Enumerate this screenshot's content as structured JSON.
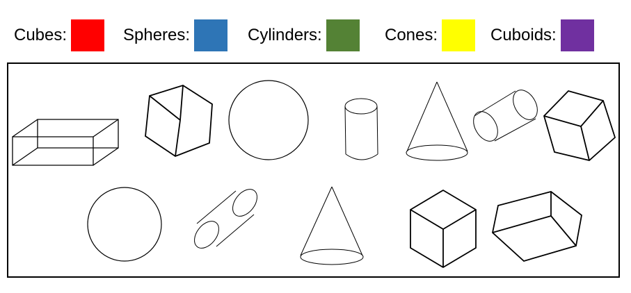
{
  "legend": {
    "items": [
      {
        "label": "Cubes:",
        "color": "#ff0000"
      },
      {
        "label": "Spheres:",
        "color": "#2e75b6"
      },
      {
        "label": "Cylinders:",
        "color": "#548235"
      },
      {
        "label": "Cones:",
        "color": "#ffff00"
      },
      {
        "label": "Cuboids:",
        "color": "#7030a0"
      }
    ]
  },
  "shapes": [
    {
      "kind": "cuboid",
      "icon": "cuboid-wireframe-icon"
    },
    {
      "kind": "cube",
      "icon": "cube-icon"
    },
    {
      "kind": "sphere",
      "icon": "sphere-icon"
    },
    {
      "kind": "cylinder",
      "icon": "cylinder-icon"
    },
    {
      "kind": "cone",
      "icon": "cone-icon"
    },
    {
      "kind": "cylinder",
      "icon": "cylinder-icon"
    },
    {
      "kind": "cube",
      "icon": "cube-icon"
    },
    {
      "kind": "sphere",
      "icon": "sphere-icon"
    },
    {
      "kind": "cylinder",
      "icon": "cylinder-icon"
    },
    {
      "kind": "cone",
      "icon": "cone-icon"
    },
    {
      "kind": "cube",
      "icon": "cube-icon"
    },
    {
      "kind": "cuboid",
      "icon": "cuboid-icon"
    }
  ]
}
